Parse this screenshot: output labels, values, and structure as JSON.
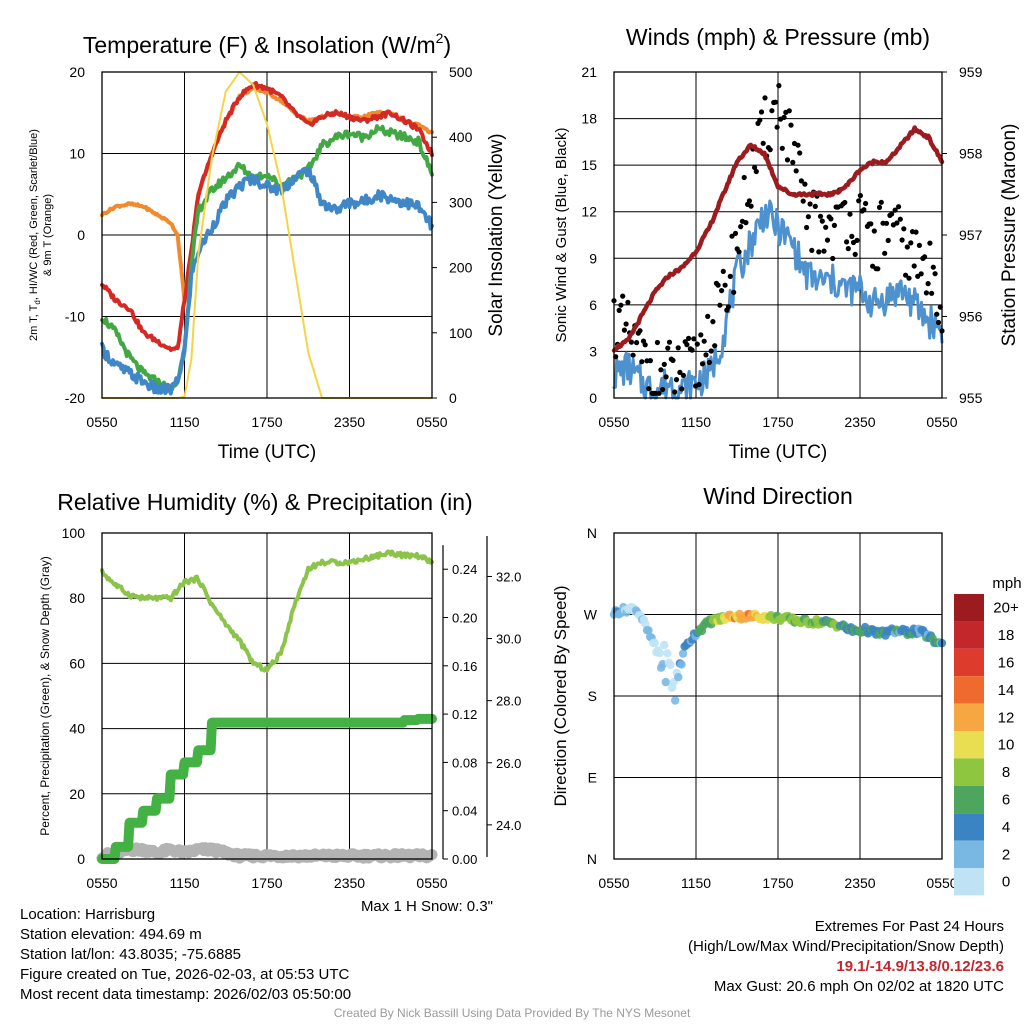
{
  "panels": {
    "temp": {
      "title": "Temperature (F) & Insolation (W/m",
      "title_sup": "2",
      "title_end": ")",
      "ylabel_line1": "2m T, T",
      "ylabel_sub": "d",
      "ylabel_line1_end": ", HI/WC (Red, Green, Scarlet/Blue)",
      "ylabel_line2": "& 9m T (Orange)",
      "y2label": "Solar Insolation (Yellow)",
      "xlabel": "Time (UTC)"
    },
    "winds": {
      "title": "Winds (mph) & Pressure (mb)",
      "ylabel": "Sonic Wind & Gust (Blue, Black)",
      "y2label": "Station Pressure (Maroon)",
      "xlabel": "Time (UTC)"
    },
    "rh": {
      "title": "Relative Humidity (%) & Precipitation (in)",
      "ylabel": "Percent, Precipitation (Green), & Snow Depth (Gray)",
      "note": "Max 1 H Snow: 0.3\""
    },
    "wdir": {
      "title": "Wind Direction",
      "ylabel": "Direction (Colored By Speed)",
      "colorbar_title": "mph",
      "colorbar_labels": [
        "20+",
        "18",
        "16",
        "14",
        "12",
        "10",
        "8",
        "6",
        "4",
        "2",
        "0"
      ],
      "colorbar_colors": [
        "#9b1b1e",
        "#c3262b",
        "#dd3b2c",
        "#ef6a2d",
        "#f6a742",
        "#e9de52",
        "#8fc640",
        "#4ea65e",
        "#3b84c4",
        "#7ab8e4",
        "#bfe3f5"
      ]
    }
  },
  "chart_data": [
    {
      "id": "temp",
      "type": "line",
      "title": "Temperature (F) & Insolation (W/m2)",
      "xlabel": "Time (UTC)",
      "x_ticks": [
        "0550",
        "1150",
        "1750",
        "2350",
        "0550"
      ],
      "ylim": [
        -20,
        20
      ],
      "y_ticks": [
        "-20",
        "-10",
        "0",
        "10",
        "20"
      ],
      "y2lim": [
        0,
        500
      ],
      "y2_ticks": [
        "0",
        "100",
        "200",
        "300",
        "400",
        "500"
      ],
      "x_hours": [
        0,
        1,
        2,
        3,
        4,
        5,
        5.5,
        6,
        6.5,
        7,
        8,
        9,
        10,
        11,
        12,
        13,
        14,
        15,
        16,
        17,
        18,
        19,
        20,
        21,
        22,
        23,
        24
      ],
      "series": [
        {
          "name": "2m T (Red)",
          "color": "#d42a25",
          "values": [
            -6,
            -8,
            -9,
            -12,
            -13,
            -14,
            -14,
            -8,
            -2,
            5,
            10,
            14,
            17,
            18.5,
            18,
            17,
            15,
            13.5,
            14.5,
            15,
            14.5,
            14,
            14.5,
            15,
            14,
            13,
            10
          ]
        },
        {
          "name": "9m T (Orange)",
          "color": "#f08a2c",
          "values": [
            2.5,
            3.5,
            3.8,
            3.5,
            2.5,
            1.5,
            0,
            -8,
            -2,
            5,
            10,
            14,
            17,
            18,
            17.5,
            16.5,
            15,
            14,
            14.5,
            15,
            14.5,
            14.5,
            15,
            15,
            14,
            13.5,
            12.5
          ]
        },
        {
          "name": "Td (Green)",
          "color": "#43a843",
          "values": [
            -10,
            -12,
            -15,
            -17,
            -18,
            -19,
            -18,
            -14,
            -4,
            3,
            5.5,
            7,
            8.5,
            7,
            7.5,
            6,
            7,
            8,
            11,
            12,
            12.5,
            12,
            13,
            12.5,
            12,
            11.5,
            7.5
          ]
        },
        {
          "name": "HI/WC (Blue)",
          "color": "#3f87c6",
          "values": [
            -14,
            -16,
            -17,
            -18,
            -19,
            -19,
            -18,
            -14,
            -5,
            -2,
            1,
            4,
            6,
            7,
            6,
            5.5,
            7,
            8,
            4,
            3,
            4,
            4,
            5,
            4.5,
            4,
            3.5,
            1
          ]
        },
        {
          "name": "Solar Insolation (Yellow)",
          "color": "#f5d447",
          "axis": "y2",
          "values": [
            0,
            0,
            0,
            0,
            0,
            0,
            0,
            2,
            60,
            220,
            370,
            470,
            500,
            480,
            420,
            330,
            200,
            70,
            0,
            0,
            0,
            0,
            0,
            0,
            0,
            0,
            0
          ]
        }
      ]
    },
    {
      "id": "winds",
      "type": "line",
      "title": "Winds (mph) & Pressure (mb)",
      "xlabel": "Time (UTC)",
      "x_ticks": [
        "0550",
        "1150",
        "1750",
        "2350",
        "0550"
      ],
      "ylim": [
        0,
        21
      ],
      "y_ticks": [
        "0",
        "3",
        "6",
        "9",
        "12",
        "15",
        "18",
        "21"
      ],
      "y2lim": [
        955,
        959
      ],
      "y2_ticks": [
        "955",
        "956",
        "957",
        "958",
        "959"
      ],
      "x_hours": [
        0,
        1,
        2,
        3,
        4,
        5,
        6,
        7,
        8,
        9,
        10,
        11,
        12,
        13,
        14,
        15,
        16,
        17,
        18,
        19,
        20,
        21,
        22,
        23,
        24
      ],
      "series": [
        {
          "name": "Sonic Wind (Blue)",
          "color": "#4d92cf",
          "values": [
            1.5,
            2,
            1,
            0.5,
            1,
            0.5,
            1,
            1.5,
            4,
            8,
            10,
            12,
            11,
            10,
            8,
            7.5,
            7.5,
            7,
            7,
            6,
            6.5,
            7,
            6,
            5,
            4.5
          ]
        },
        {
          "name": "Gust (Black)",
          "color": "#000000",
          "values": [
            5,
            4,
            2.5,
            1.5,
            1.5,
            1.5,
            2,
            4.5,
            6,
            10,
            14,
            17,
            19,
            16,
            12,
            11,
            11,
            12,
            11,
            10,
            11,
            10,
            9,
            8,
            6.5
          ]
        },
        {
          "name": "Station Pressure (Maroon)",
          "color": "#9b1b1e",
          "axis": "y2",
          "values": [
            955.6,
            955.7,
            956.0,
            956.3,
            956.5,
            956.6,
            956.8,
            957.1,
            957.5,
            957.9,
            958.1,
            958.0,
            957.6,
            957.5,
            957.5,
            957.5,
            957.5,
            957.6,
            957.8,
            957.9,
            957.9,
            958.1,
            958.3,
            958.2,
            957.9
          ]
        }
      ]
    },
    {
      "id": "rh",
      "type": "line",
      "title": "Relative Humidity (%) & Precipitation (in)",
      "x_ticks": [
        "0550",
        "1150",
        "1750",
        "2350",
        "0550"
      ],
      "ylim": [
        0,
        100
      ],
      "y_ticks": [
        "0",
        "20",
        "40",
        "60",
        "80",
        "100"
      ],
      "y2lim": [
        0,
        0.27
      ],
      "y2_ticks": [
        "0.00",
        "0.04",
        "0.08",
        "0.12",
        "0.16",
        "0.20",
        "0.24"
      ],
      "y3lim": [
        22.9,
        33.4
      ],
      "y3_ticks": [
        "24.0",
        "26.0",
        "28.0",
        "30.0",
        "32.0"
      ],
      "x_hours": [
        0,
        1,
        2,
        3,
        4,
        5,
        6,
        7,
        8,
        9,
        10,
        11,
        12,
        13,
        14,
        15,
        16,
        17,
        18,
        19,
        20,
        21,
        22,
        23,
        24
      ],
      "series": [
        {
          "name": "Relative Humidity (Light Green)",
          "color": "#8cc34a",
          "values": [
            88,
            84,
            81,
            80,
            80,
            80,
            85,
            86,
            78,
            72,
            67,
            60,
            58,
            63,
            78,
            89,
            91,
            91,
            91,
            92,
            93,
            94,
            93,
            93,
            91
          ]
        },
        {
          "name": "Precipitation (Green)",
          "color": "#44b144",
          "axis": "y2",
          "step": true,
          "values": [
            0,
            0.01,
            0.03,
            0.04,
            0.05,
            0.07,
            0.08,
            0.09,
            0.113,
            0.113,
            0.113,
            0.113,
            0.113,
            0.113,
            0.113,
            0.113,
            0.113,
            0.113,
            0.113,
            0.113,
            0.113,
            0.113,
            0.115,
            0.116,
            0.116
          ]
        },
        {
          "name": "Snow Depth (Gray)",
          "color": "#b3b3b3",
          "axis": "y3",
          "values": [
            23.0,
            23.1,
            23.2,
            23.2,
            23.1,
            23.2,
            23.1,
            23.2,
            23.2,
            23.1,
            23.0,
            23.0,
            23.0,
            23.0,
            23.0,
            23.0,
            23.0,
            23.0,
            23.0,
            23.0,
            23.0,
            23.0,
            23.0,
            23.0,
            23.0
          ]
        }
      ]
    },
    {
      "id": "wdir",
      "type": "scatter",
      "title": "Wind Direction",
      "x_ticks": [
        "0550",
        "1150",
        "1750",
        "2350",
        "0550"
      ],
      "y_ticks": [
        "N",
        "E",
        "S",
        "W",
        "N"
      ],
      "y_degrees": [
        0,
        90,
        180,
        270,
        360
      ],
      "colorbar_range_mph": [
        0,
        20
      ],
      "points_hours": [
        0,
        0.5,
        1,
        1.5,
        2,
        2.5,
        3,
        3.5,
        4,
        4.5,
        5,
        5.5,
        6,
        6.5,
        7,
        7.5,
        8,
        8.5,
        9,
        9.5,
        10,
        10.5,
        11,
        11.5,
        12,
        12.5,
        13,
        13.5,
        14,
        14.5,
        15,
        15.5,
        16,
        16.5,
        17,
        17.5,
        18,
        18.5,
        19,
        19.5,
        20,
        20.5,
        21,
        21.5,
        22,
        22.5,
        23,
        23.5,
        24
      ],
      "points_dir_deg": [
        272,
        274,
        276,
        277,
        268,
        250,
        235,
        220,
        212,
        185,
        228,
        240,
        250,
        256,
        262,
        264,
        266,
        268,
        268,
        268,
        268,
        268,
        267,
        267,
        266,
        266,
        264,
        263,
        262,
        262,
        262,
        261,
        260,
        258,
        255,
        252,
        252,
        253,
        250,
        249,
        250,
        252,
        251,
        250,
        252,
        250,
        246,
        240,
        237
      ],
      "points_speed_mph": [
        2,
        2,
        2,
        1.5,
        1,
        1,
        0.5,
        1,
        0.5,
        1.5,
        3,
        4,
        4,
        5,
        6,
        8,
        9,
        11,
        12,
        13,
        12,
        11,
        10,
        8,
        8,
        7,
        7,
        8,
        7,
        6,
        7,
        6,
        7,
        6,
        5,
        4,
        5,
        4,
        4,
        5,
        4,
        4,
        4,
        4,
        4,
        4,
        4,
        4,
        4
      ]
    }
  ],
  "footer": {
    "location": "Location: Harrisburg",
    "elevation": "Station elevation: 494.69 m",
    "latlon": "Station lat/lon: 43.8035; -75.6885",
    "created": "Figure created on Tue, 2026-02-03, at 05:53 UTC",
    "recent": "Most recent data timestamp: 2026/02/03 05:50:00",
    "extremes_title": "Extremes For Past 24 Hours",
    "extremes_legend": "(High/Low/Max Wind/Precipitation/Snow Depth)",
    "extremes_values": "19.1/-14.9/13.8/0.12/23.6",
    "max_gust": "Max Gust: 20.6 mph On 02/02 at 1820 UTC",
    "credit": "Created By Nick Bassill Using Data Provided By The NYS Mesonet"
  }
}
